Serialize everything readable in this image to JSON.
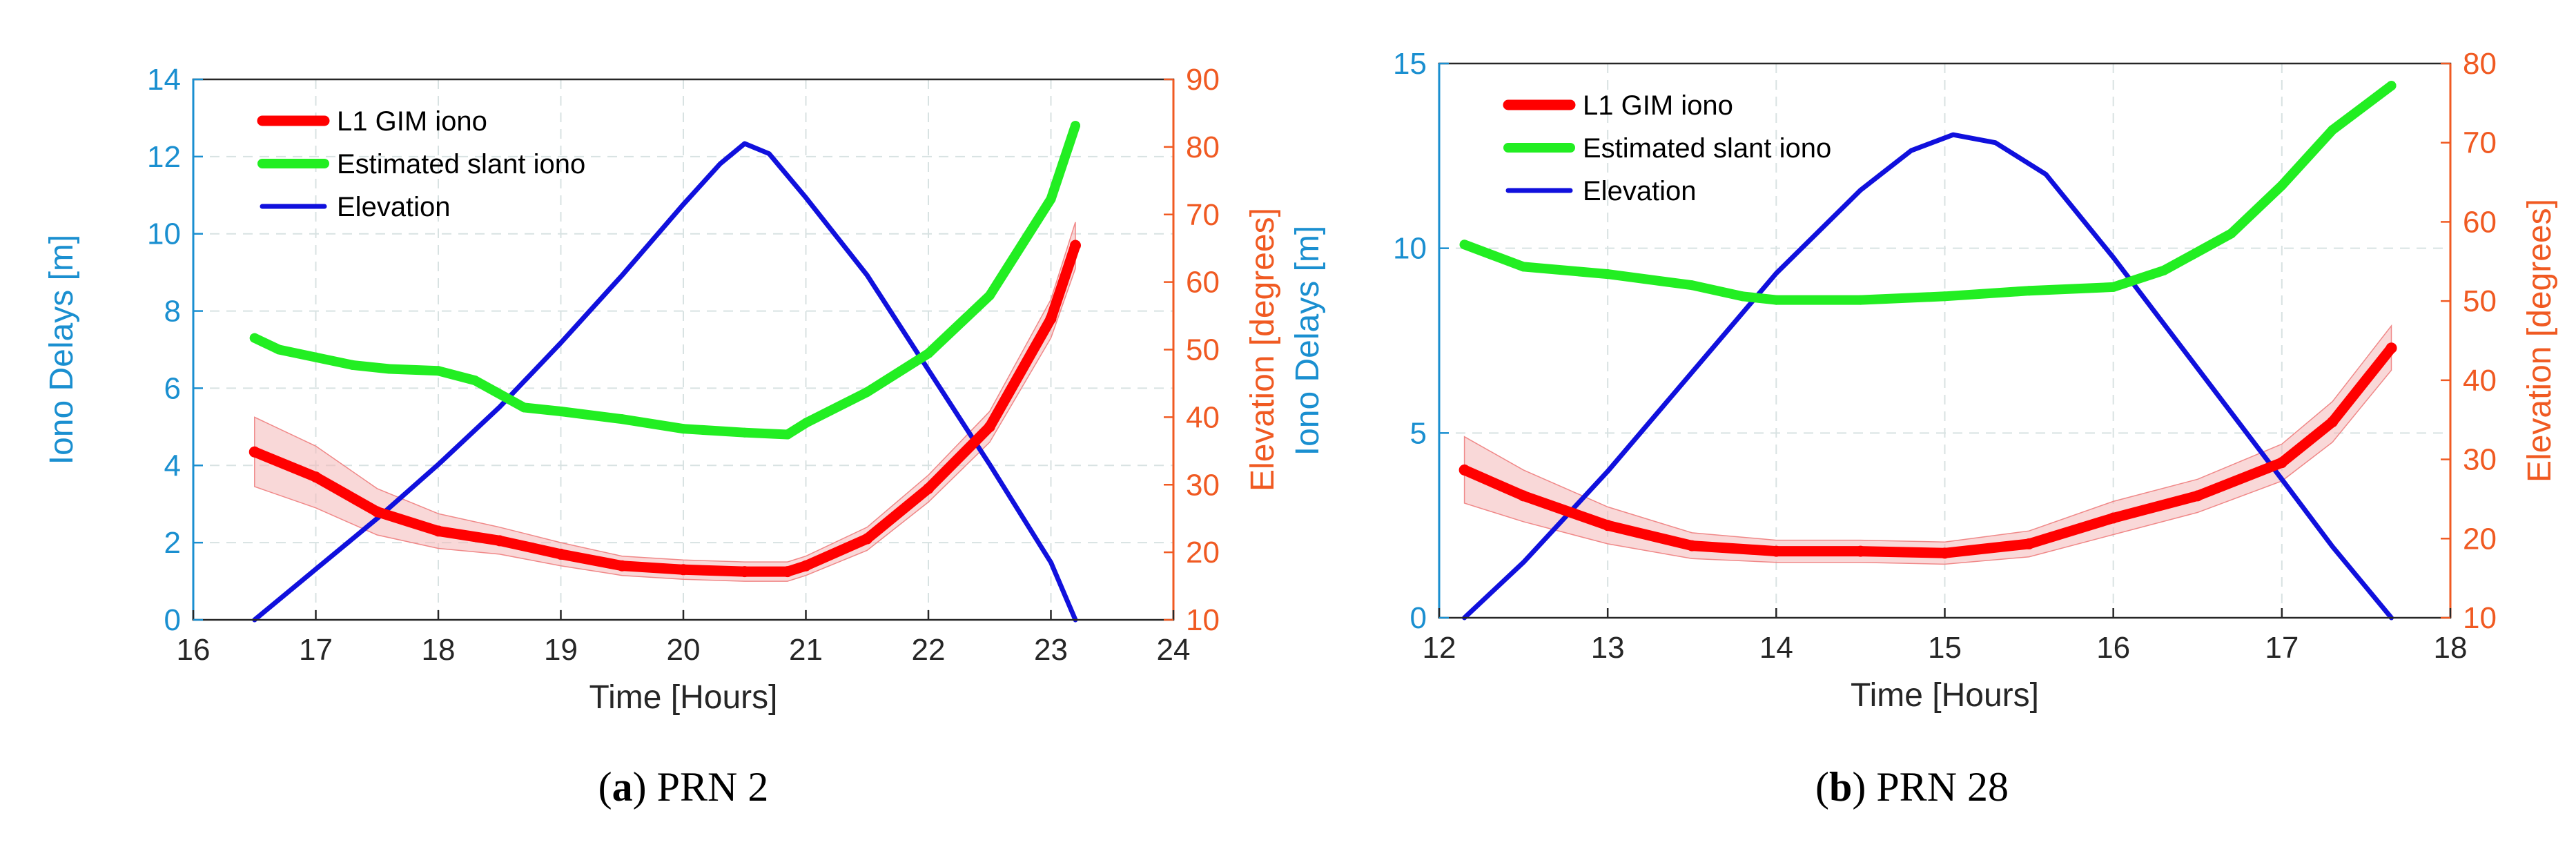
{
  "chart_data": [
    {
      "type": "line",
      "caption": {
        "letter": "a",
        "rest": " PRN 2"
      },
      "xlabel": "Time [Hours]",
      "ylabel": "Iono Delays [m]",
      "ylabel_right": "Elevation [degrees]",
      "xlim": [
        16,
        24
      ],
      "ylim": [
        0,
        14
      ],
      "ylim_right": [
        10,
        90
      ],
      "xticks": [
        16,
        17,
        18,
        19,
        20,
        21,
        22,
        23,
        24
      ],
      "yticks": [
        0,
        2,
        4,
        6,
        8,
        10,
        12,
        14
      ],
      "yticks_right": [
        10,
        20,
        30,
        40,
        50,
        60,
        70,
        80,
        90
      ],
      "grid": true,
      "legend_position": "top-left",
      "colors": {
        "left_axis": "#1a8fd0",
        "right_axis": "#f05a22",
        "gim": "#ff0000",
        "band": "#f4b8b8",
        "slant": "#22ee22",
        "elev": "#1010dd"
      },
      "series": [
        {
          "name": "L1 GIM iono",
          "axis": "left",
          "x": [
            16.5,
            17,
            17.5,
            18,
            18.5,
            19,
            19.5,
            20,
            20.5,
            20.85,
            21,
            21.5,
            22,
            22.5,
            23,
            23.2
          ],
          "y": [
            4.35,
            3.7,
            2.8,
            2.3,
            2.05,
            1.7,
            1.4,
            1.3,
            1.25,
            1.25,
            1.4,
            2.1,
            3.4,
            5.0,
            7.8,
            9.7
          ],
          "band_width": [
            0.9,
            0.8,
            0.6,
            0.45,
            0.35,
            0.3,
            0.25,
            0.25,
            0.25,
            0.25,
            0.25,
            0.3,
            0.35,
            0.4,
            0.5,
            0.6
          ]
        },
        {
          "name": "Estimated slant iono",
          "axis": "left",
          "x": [
            16.5,
            16.7,
            17,
            17.3,
            17.6,
            18,
            18.3,
            18.7,
            19,
            19.5,
            20,
            20.5,
            20.85,
            21,
            21.5,
            22,
            22.5,
            23,
            23.2
          ],
          "y": [
            7.3,
            7.0,
            6.8,
            6.6,
            6.5,
            6.45,
            6.2,
            5.5,
            5.4,
            5.2,
            4.95,
            4.85,
            4.8,
            5.1,
            5.9,
            6.9,
            8.4,
            10.9,
            12.8
          ]
        },
        {
          "name": "Elevation",
          "axis": "right",
          "x": [
            16.5,
            17,
            17.5,
            18,
            18.5,
            19,
            19.5,
            20,
            20.3,
            20.5,
            20.7,
            21,
            21.5,
            22,
            22.5,
            23,
            23.2
          ],
          "y": [
            10,
            17.5,
            25,
            33,
            41.5,
            51,
            61,
            71.5,
            77.5,
            80.5,
            79,
            72.5,
            61,
            47,
            33,
            18.5,
            10
          ]
        }
      ]
    },
    {
      "type": "line",
      "caption": {
        "letter": "b",
        "rest": " PRN 28"
      },
      "xlabel": "Time [Hours]",
      "ylabel": "Iono Delays [m]",
      "ylabel_right": "Elevation [degrees]",
      "xlim": [
        12,
        18
      ],
      "ylim": [
        0,
        15
      ],
      "ylim_right": [
        10,
        80
      ],
      "xticks": [
        12,
        13,
        14,
        15,
        16,
        17,
        18
      ],
      "yticks": [
        0,
        5,
        10,
        15
      ],
      "yticks_right": [
        10,
        20,
        30,
        40,
        50,
        60,
        70,
        80
      ],
      "grid": true,
      "legend_position": "top-left",
      "colors": {
        "left_axis": "#1a8fd0",
        "right_axis": "#f05a22",
        "gim": "#ff0000",
        "band": "#f4b8b8",
        "slant": "#22ee22",
        "elev": "#1010dd"
      },
      "series": [
        {
          "name": "L1 GIM iono",
          "axis": "left",
          "x": [
            12.15,
            12.5,
            13,
            13.5,
            14,
            14.5,
            15,
            15.5,
            16,
            16.5,
            17,
            17.3,
            17.65
          ],
          "y": [
            4.0,
            3.3,
            2.5,
            1.95,
            1.8,
            1.8,
            1.75,
            2.0,
            2.7,
            3.3,
            4.2,
            5.3,
            7.3
          ],
          "band_width": [
            0.9,
            0.7,
            0.5,
            0.35,
            0.3,
            0.3,
            0.3,
            0.35,
            0.45,
            0.45,
            0.5,
            0.55,
            0.6
          ]
        },
        {
          "name": "Estimated slant iono",
          "axis": "left",
          "x": [
            12.15,
            12.5,
            13,
            13.5,
            13.8,
            14,
            14.5,
            15,
            15.5,
            16,
            16.3,
            16.7,
            17,
            17.3,
            17.65
          ],
          "y": [
            10.1,
            9.5,
            9.3,
            9.0,
            8.7,
            8.6,
            8.6,
            8.7,
            8.85,
            8.95,
            9.4,
            10.4,
            11.7,
            13.2,
            14.4
          ]
        },
        {
          "name": "Elevation",
          "axis": "right",
          "x": [
            12.15,
            12.5,
            13,
            13.5,
            14,
            14.5,
            14.8,
            15.05,
            15.3,
            15.6,
            16,
            16.5,
            17,
            17.3,
            17.65
          ],
          "y": [
            10,
            17,
            28.5,
            41,
            53.5,
            64,
            69,
            71,
            70,
            66,
            55.5,
            41.5,
            27.5,
            19,
            10
          ]
        }
      ]
    }
  ]
}
